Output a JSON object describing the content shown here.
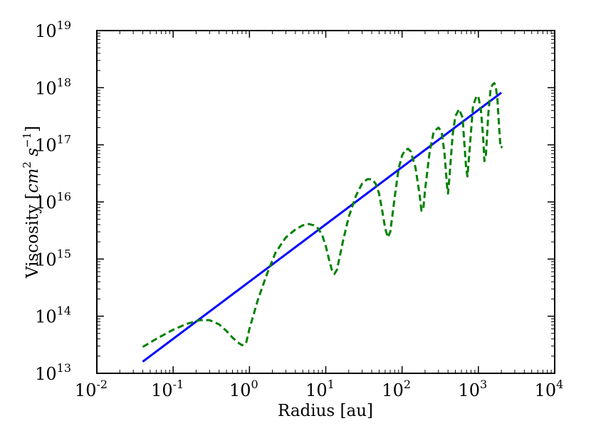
{
  "chart_data": {
    "type": "line",
    "title": "",
    "xlabel": "Radius [au]",
    "ylabel_text": "Viscosity [",
    "ylabel_math": "cm",
    "ylabel_math_sup": "2",
    "ylabel_math2": " s",
    "ylabel_math2_sup": "−1",
    "ylabel_close": "]",
    "xscale": "log",
    "yscale": "log",
    "xlim": [
      0.01,
      10000
    ],
    "ylim": [
      10000000000000.0,
      1e+19
    ],
    "grid": false,
    "legend": "none",
    "x_ticks": [
      {
        "base": "10",
        "exp": "-2"
      },
      {
        "base": "10",
        "exp": "-1"
      },
      {
        "base": "10",
        "exp": "0"
      },
      {
        "base": "10",
        "exp": "1"
      },
      {
        "base": "10",
        "exp": "2"
      },
      {
        "base": "10",
        "exp": "3"
      },
      {
        "base": "10",
        "exp": "4"
      }
    ],
    "y_ticks": [
      {
        "base": "10",
        "exp": "13"
      },
      {
        "base": "10",
        "exp": "14"
      },
      {
        "base": "10",
        "exp": "15"
      },
      {
        "base": "10",
        "exp": "16"
      },
      {
        "base": "10",
        "exp": "17"
      },
      {
        "base": "10",
        "exp": "18"
      },
      {
        "base": "10",
        "exp": "19"
      }
    ],
    "series": [
      {
        "style": "solid",
        "color": "#0000ff",
        "x": [
          0.04,
          2000
        ],
        "y": [
          16000000000000.0,
          8.2e+17
        ]
      },
      {
        "style": "dashed",
        "color": "#008000",
        "x": [
          0.04,
          0.06,
          0.1,
          0.15,
          0.22,
          0.3,
          0.4,
          0.5,
          0.6,
          0.7,
          0.8,
          0.9,
          1.0,
          1.3,
          1.7,
          2.2,
          3,
          4,
          5,
          6,
          7,
          8,
          9,
          10,
          11,
          12,
          13,
          14,
          15,
          17,
          20,
          25,
          30,
          35,
          40,
          45,
          50,
          55,
          60,
          65,
          70,
          80,
          90,
          100,
          110,
          120,
          130,
          150,
          170,
          180,
          190,
          200,
          230,
          260,
          300,
          330,
          360,
          390,
          400,
          420,
          460,
          500,
          560,
          620,
          650,
          690,
          720,
          760,
          850,
          950,
          1000,
          1080,
          1150,
          1200,
          1250,
          1350,
          1450,
          1550,
          1620,
          1700,
          1780,
          1850,
          1900,
          1950,
          2000,
          2050
        ],
        "y": [
          29000000000000.0,
          40000000000000.0,
          58000000000000.0,
          73000000000000.0,
          85000000000000.0,
          85000000000000.0,
          72000000000000.0,
          55000000000000.0,
          42000000000000.0,
          35000000000000.0,
          31000000000000.0,
          33000000000000.0,
          60000000000000.0,
          200000000000000.0,
          550000000000000.0,
          1300000000000000.0,
          2400000000000000.0,
          3300000000000000.0,
          3900000000000000.0,
          4100000000000000.0,
          3900000000000000.0,
          3400000000000000.0,
          2600000000000000.0,
          1700000000000000.0,
          1000000000000000.0,
          650000000000000.0,
          550000000000000.0,
          650000000000000.0,
          1000000000000000.0,
          2200000000000000.0,
          5500000000000000.0,
          1.3e+16,
          2.1e+16,
          2.5e+16,
          2.5e+16,
          2.1e+16,
          1.4e+16,
          7000000000000000.0,
          3500000000000000.0,
          2400000000000000.0,
          3000000000000000.0,
          1.2e+16,
          3.8e+16,
          6.5e+16,
          8.2e+16,
          8.5e+16,
          7.6e+16,
          4e+16,
          1.3e+16,
          7000000000000000.0,
          7500000000000000.0,
          1.6e+16,
          7.5e+16,
          1.7e+17,
          2e+17,
          1.7e+17,
          7e+16,
          1.8e+16,
          1.4e+16,
          3e+16,
          1.5e+17,
          3.2e+17,
          4.2e+17,
          3e+17,
          1.2e+17,
          4e+16,
          2.8e+16,
          7e+16,
          4.8e+17,
          7.2e+17,
          7e+17,
          4e+17,
          1.5e+17,
          5.2e+16,
          6e+16,
          3.5e+17,
          9.8e+17,
          1.15e+18,
          1.2e+18,
          1e+18,
          6e+17,
          2.5e+17,
          1.5e+17,
          9e+16,
          9e+16,
          9.5e+16
        ]
      }
    ]
  }
}
